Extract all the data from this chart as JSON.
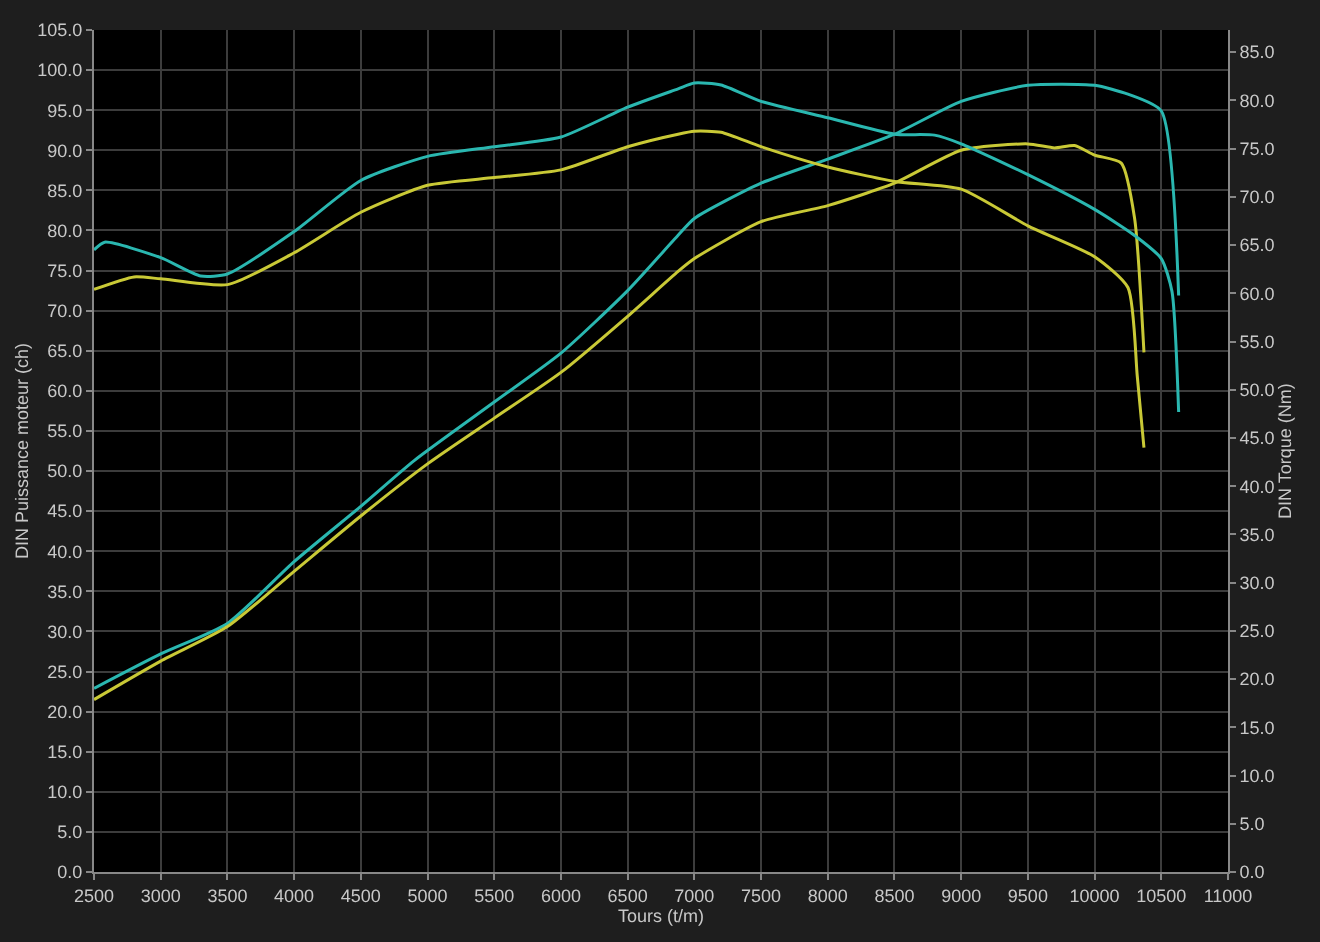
{
  "chart_data": {
    "type": "line",
    "xlabel": "Tours (t/m)",
    "ylabel": "DIN Puissance moteur (ch)",
    "y2label": "DIN Torque (Nm)",
    "series": [
      {
        "color": "#2ab7b0",
        "x": [
          2500,
          3000,
          3500,
          4000,
          4500,
          4900,
          5500,
          6000,
          6500,
          6878,
          7000,
          7500,
          8000,
          8500,
          9000,
          9500,
          10000,
          10250,
          10500,
          10630
        ],
        "values": [
          22.9,
          27.2,
          31.0,
          38.7,
          45.6,
          51.3,
          58.6,
          64.7,
          72.5,
          79.4,
          81.5,
          85.9,
          88.9,
          92.0,
          96.1,
          98.1,
          98.1,
          97.0,
          94.9,
          71.9
        ]
      },
      {
        "color": "#c9c936",
        "x": [
          2500,
          3000,
          3500,
          4000,
          4500,
          5000,
          5500,
          6000,
          6500,
          6878,
          7000,
          7500,
          8000,
          8500,
          9000,
          9500,
          9700,
          9850,
          10000,
          10200,
          10300,
          10370
        ],
        "values": [
          21.5,
          26.3,
          30.6,
          37.5,
          44.4,
          50.9,
          56.6,
          62.3,
          69.3,
          74.9,
          76.5,
          81.1,
          83.1,
          85.9,
          90.0,
          90.8,
          90.3,
          90.6,
          89.4,
          88.4,
          81.5,
          64.8
        ]
      },
      {
        "color": "#2ab7b0",
        "axis": "y2",
        "x": [
          2500,
          2580,
          3000,
          3300,
          3500,
          4000,
          4500,
          5000,
          5500,
          6000,
          6500,
          6878,
          7000,
          7200,
          7500,
          8000,
          8500,
          8800,
          9000,
          9500,
          10000,
          10300,
          10500,
          10580,
          10630
        ],
        "values": [
          64.5,
          65.3,
          63.7,
          61.8,
          62.0,
          66.4,
          71.7,
          74.2,
          75.2,
          76.2,
          79.3,
          81.2,
          81.8,
          81.6,
          79.9,
          78.2,
          76.5,
          76.4,
          75.5,
          72.3,
          68.7,
          66.0,
          63.6,
          60.2,
          47.7
        ]
      },
      {
        "color": "#c9c936",
        "axis": "y2",
        "x": [
          2500,
          2800,
          3000,
          3500,
          4000,
          4500,
          5000,
          5500,
          6000,
          6500,
          6878,
          7000,
          7200,
          7500,
          8000,
          8500,
          9000,
          9500,
          10000,
          10250,
          10320,
          10370
        ],
        "values": [
          60.4,
          61.7,
          61.5,
          60.9,
          64.2,
          68.4,
          71.2,
          72.0,
          72.8,
          75.2,
          76.5,
          76.8,
          76.7,
          75.2,
          73.1,
          71.6,
          70.8,
          67.0,
          63.8,
          60.6,
          51.4,
          44.0
        ]
      }
    ],
    "xlim": [
      2500,
      11000
    ],
    "xticks": [
      2500,
      3000,
      3500,
      4000,
      4500,
      5000,
      5500,
      6000,
      6500,
      7000,
      7500,
      8000,
      8500,
      9000,
      9500,
      10000,
      10500,
      11000
    ],
    "ylim": [
      0,
      105
    ],
    "yticks": [
      {
        "value": 0,
        "label": "0.0"
      },
      {
        "value": 5,
        "label": "5.0"
      },
      {
        "value": 10,
        "label": "10.0"
      },
      {
        "value": 15,
        "label": "15.0"
      },
      {
        "value": 20,
        "label": "20.0"
      },
      {
        "value": 25,
        "label": "25.0"
      },
      {
        "value": 30,
        "label": "30.0"
      },
      {
        "value": 35,
        "label": "35.0"
      },
      {
        "value": 40,
        "label": "40.0"
      },
      {
        "value": 45,
        "label": "45.0"
      },
      {
        "value": 50,
        "label": "50.0"
      },
      {
        "value": 55,
        "label": "55.0"
      },
      {
        "value": 60,
        "label": "60.0"
      },
      {
        "value": 65,
        "label": "65.0"
      },
      {
        "value": 70,
        "label": "70.0"
      },
      {
        "value": 75,
        "label": "75.0"
      },
      {
        "value": 80,
        "label": "80.0"
      },
      {
        "value": 85,
        "label": "85.0"
      },
      {
        "value": 90,
        "label": "90.0"
      },
      {
        "value": 95,
        "label": "95.0"
      },
      {
        "value": 100,
        "label": "100.0"
      },
      {
        "value": 105,
        "label": "105.0"
      }
    ],
    "y2lim": [
      0,
      87.3
    ],
    "y2ticks": [
      {
        "value": 0,
        "label": "0.0"
      },
      {
        "value": 5,
        "label": "5.0"
      },
      {
        "value": 10,
        "label": "10.0"
      },
      {
        "value": 15,
        "label": "15.0"
      },
      {
        "value": 20,
        "label": "20.0"
      },
      {
        "value": 25,
        "label": "25.0"
      },
      {
        "value": 30,
        "label": "30.0"
      },
      {
        "value": 35,
        "label": "35.0"
      },
      {
        "value": 40,
        "label": "40.0"
      },
      {
        "value": 45,
        "label": "45.0"
      },
      {
        "value": 50,
        "label": "50.0"
      },
      {
        "value": 55,
        "label": "55.0"
      },
      {
        "value": 60,
        "label": "60.0"
      },
      {
        "value": 65,
        "label": "65.0"
      },
      {
        "value": 70,
        "label": "70.0"
      },
      {
        "value": 75,
        "label": "75.0"
      },
      {
        "value": 80,
        "label": "80.0"
      },
      {
        "value": 85,
        "label": "85.0"
      }
    ],
    "grid": true,
    "marker": "none",
    "line_style": "solid"
  }
}
